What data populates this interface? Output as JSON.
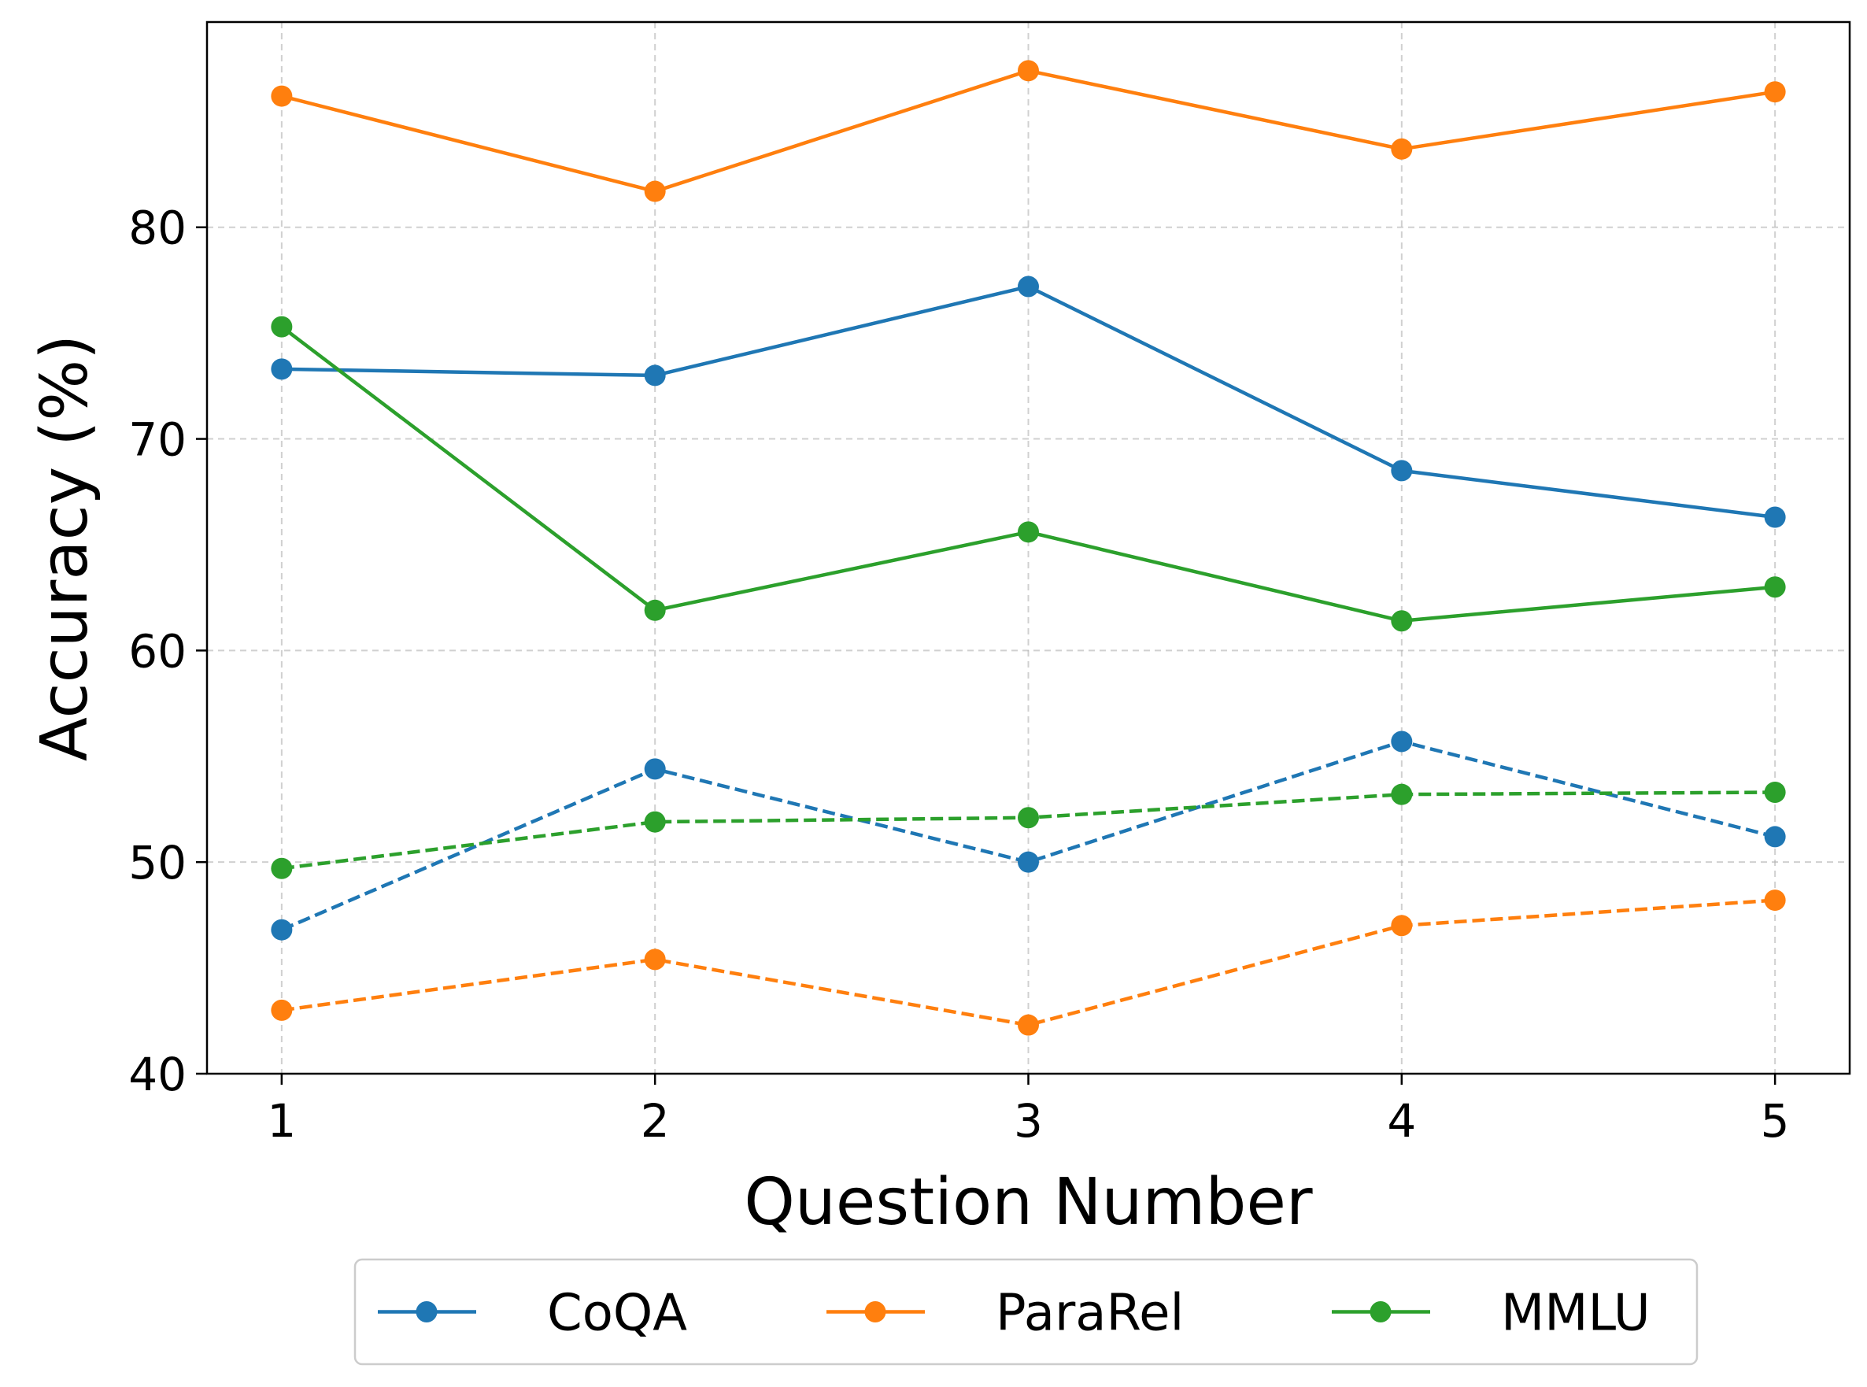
{
  "chart_data": {
    "type": "line",
    "title": "",
    "xlabel": "Question Number",
    "ylabel": "Accuracy (%)",
    "categories": [
      "1",
      "2",
      "3",
      "4",
      "5"
    ],
    "x": [
      1,
      2,
      3,
      4,
      5
    ],
    "xlim": [
      0.8,
      5.2
    ],
    "ylim": [
      40,
      89.7
    ],
    "yticks": [
      40,
      50,
      60,
      70,
      80
    ],
    "grid": true,
    "legend_position": "bottom-center",
    "legend": [
      "CoQA",
      "ParaRel",
      "MMLU"
    ],
    "colors": {
      "CoQA": "#1f77b4",
      "ParaRel": "#ff7f0e",
      "MMLU": "#2ca02c"
    },
    "series": [
      {
        "name": "CoQA",
        "style": "solid",
        "color": "#1f77b4",
        "values": [
          73.3,
          73.0,
          77.2,
          68.5,
          66.3
        ]
      },
      {
        "name": "ParaRel",
        "style": "solid",
        "color": "#ff7f0e",
        "values": [
          86.2,
          81.7,
          87.4,
          83.7,
          86.4
        ]
      },
      {
        "name": "MMLU",
        "style": "solid",
        "color": "#2ca02c",
        "values": [
          75.3,
          61.9,
          65.6,
          61.4,
          63.0
        ]
      },
      {
        "name": "CoQA",
        "style": "dashed",
        "color": "#1f77b4",
        "values": [
          46.8,
          54.4,
          50.0,
          55.7,
          51.2
        ]
      },
      {
        "name": "ParaRel",
        "style": "dashed",
        "color": "#ff7f0e",
        "values": [
          43.0,
          45.4,
          42.3,
          47.0,
          48.2
        ]
      },
      {
        "name": "MMLU",
        "style": "dashed",
        "color": "#2ca02c",
        "values": [
          49.7,
          51.9,
          52.1,
          53.2,
          53.3
        ]
      }
    ]
  }
}
